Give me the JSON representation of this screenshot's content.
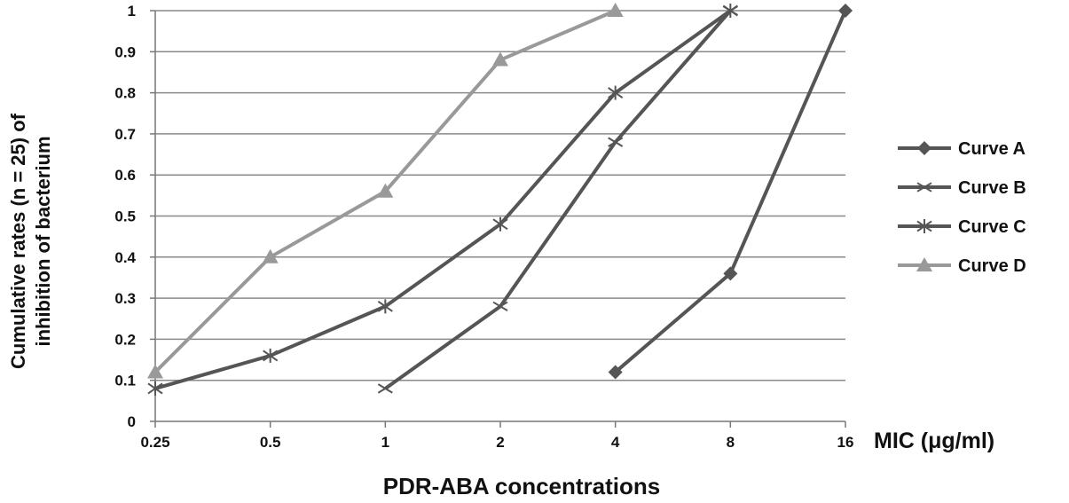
{
  "chart_data": {
    "type": "line",
    "title": "",
    "xlabel": "PDR-ABA concentrations",
    "x_unit_label": "MIC (μg/ml)",
    "ylabel_line1": "Cumulative rates (n = 25) of",
    "ylabel_line2": "inhibition of bacterium",
    "categories": [
      "0.25",
      "0.5",
      "1",
      "2",
      "4",
      "8",
      "16"
    ],
    "y_ticks": [
      "0",
      "0.1",
      "0.2",
      "0.3",
      "0.4",
      "0.5",
      "0.6",
      "0.7",
      "0.8",
      "0.9",
      "1"
    ],
    "ylim": [
      0,
      1
    ],
    "grid": true,
    "legend_position": "right",
    "series": [
      {
        "name": "Curve A",
        "marker": "diamond",
        "color": "#555555",
        "values": [
          null,
          null,
          null,
          null,
          0.12,
          0.36,
          1.0
        ]
      },
      {
        "name": "Curve B",
        "marker": "x",
        "color": "#555555",
        "values": [
          null,
          null,
          0.08,
          0.28,
          0.68,
          1.0,
          null
        ]
      },
      {
        "name": "Curve C",
        "marker": "star",
        "color": "#555555",
        "values": [
          0.08,
          0.16,
          0.28,
          0.48,
          0.8,
          1.0,
          null
        ]
      },
      {
        "name": "Curve D",
        "marker": "triangle",
        "color": "#999999",
        "values": [
          0.12,
          0.4,
          0.56,
          0.88,
          1.0,
          null,
          null
        ]
      }
    ]
  }
}
